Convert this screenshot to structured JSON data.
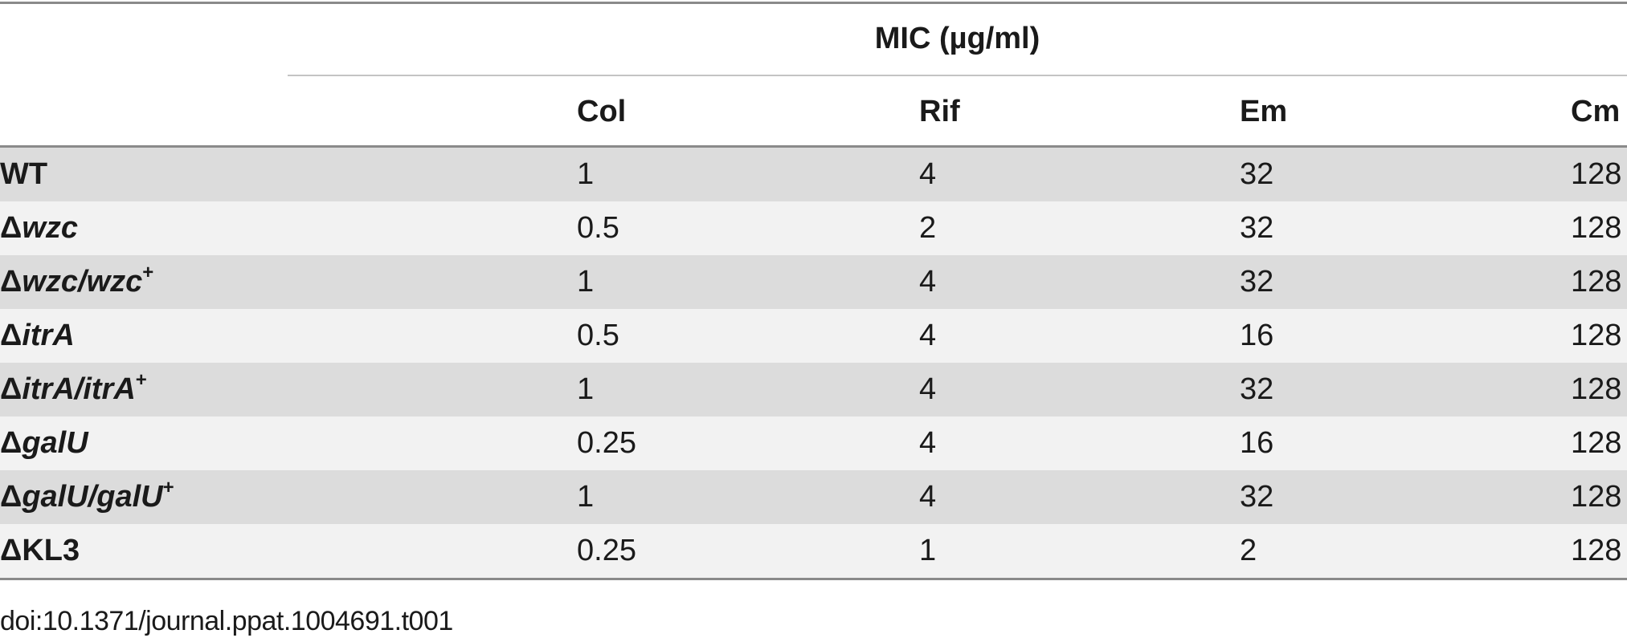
{
  "table": {
    "group_header": "MIC (µg/ml)",
    "columns": [
      "Col",
      "Rif",
      "Em",
      "Cm"
    ],
    "rows": [
      {
        "prefix": "",
        "gene": "",
        "gene2": "",
        "plain": "WT",
        "sep": "",
        "sup": "",
        "values": [
          "1",
          "4",
          "32",
          "128"
        ]
      },
      {
        "prefix": "Δ",
        "gene": "wzc",
        "gene2": "",
        "plain": "",
        "sep": "",
        "sup": "",
        "values": [
          "0.5",
          "2",
          "32",
          "128"
        ]
      },
      {
        "prefix": "Δ",
        "gene": "wzc",
        "sep": "/",
        "gene2": "wzc",
        "plain": "",
        "sup": "+",
        "values": [
          "1",
          "4",
          "32",
          "128"
        ]
      },
      {
        "prefix": "Δ",
        "gene": "itrA",
        "gene2": "",
        "plain": "",
        "sep": "",
        "sup": "",
        "values": [
          "0.5",
          "4",
          "16",
          "128"
        ]
      },
      {
        "prefix": "Δ",
        "gene": "itrA",
        "sep": "/",
        "gene2": "itrA",
        "plain": "",
        "sup": "+",
        "values": [
          "1",
          "4",
          "32",
          "128"
        ]
      },
      {
        "prefix": "Δ",
        "gene": "galU",
        "gene2": "",
        "plain": "",
        "sep": "",
        "sup": "",
        "values": [
          "0.25",
          "4",
          "16",
          "128"
        ]
      },
      {
        "prefix": "Δ",
        "gene": "galU",
        "sep": "/",
        "gene2": "galU",
        "plain": "",
        "sup": "+",
        "values": [
          "1",
          "4",
          "32",
          "128"
        ]
      },
      {
        "prefix": "Δ",
        "gene": "",
        "gene2": "",
        "plain": "KL3",
        "sep": "",
        "sup": "",
        "values": [
          "0.25",
          "1",
          "2",
          "128"
        ]
      }
    ]
  },
  "footer": {
    "doi": "doi:10.1371/journal.ppat.1004691.t001"
  }
}
